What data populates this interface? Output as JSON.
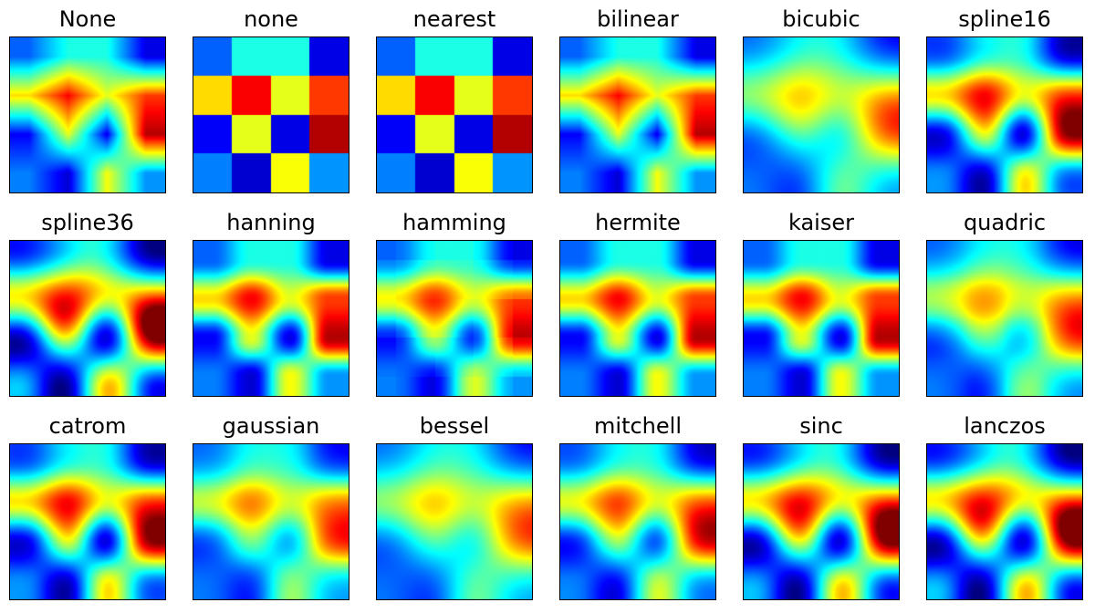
{
  "chart_data": {
    "type": "heatmap",
    "colormap": "jet",
    "grid": false,
    "axes_ticks": false,
    "vmin": 0,
    "vmax": 1,
    "matrix": [
      [
        0.22,
        0.4,
        0.4,
        0.1
      ],
      [
        0.66,
        0.88,
        0.6,
        0.82
      ],
      [
        0.12,
        0.6,
        0.1,
        0.95
      ],
      [
        0.25,
        0.08,
        0.62,
        0.27
      ]
    ],
    "panels": [
      {
        "title": "None",
        "interpolation": "None"
      },
      {
        "title": "none",
        "interpolation": "none"
      },
      {
        "title": "nearest",
        "interpolation": "nearest"
      },
      {
        "title": "bilinear",
        "interpolation": "bilinear"
      },
      {
        "title": "bicubic",
        "interpolation": "bicubic"
      },
      {
        "title": "spline16",
        "interpolation": "spline16"
      },
      {
        "title": "spline36",
        "interpolation": "spline36"
      },
      {
        "title": "hanning",
        "interpolation": "hanning"
      },
      {
        "title": "hamming",
        "interpolation": "hamming"
      },
      {
        "title": "hermite",
        "interpolation": "hermite"
      },
      {
        "title": "kaiser",
        "interpolation": "kaiser"
      },
      {
        "title": "quadric",
        "interpolation": "quadric"
      },
      {
        "title": "catrom",
        "interpolation": "catrom"
      },
      {
        "title": "gaussian",
        "interpolation": "gaussian"
      },
      {
        "title": "bessel",
        "interpolation": "bessel"
      },
      {
        "title": "mitchell",
        "interpolation": "mitchell"
      },
      {
        "title": "sinc",
        "interpolation": "sinc"
      },
      {
        "title": "lanczos",
        "interpolation": "lanczos"
      }
    ]
  }
}
